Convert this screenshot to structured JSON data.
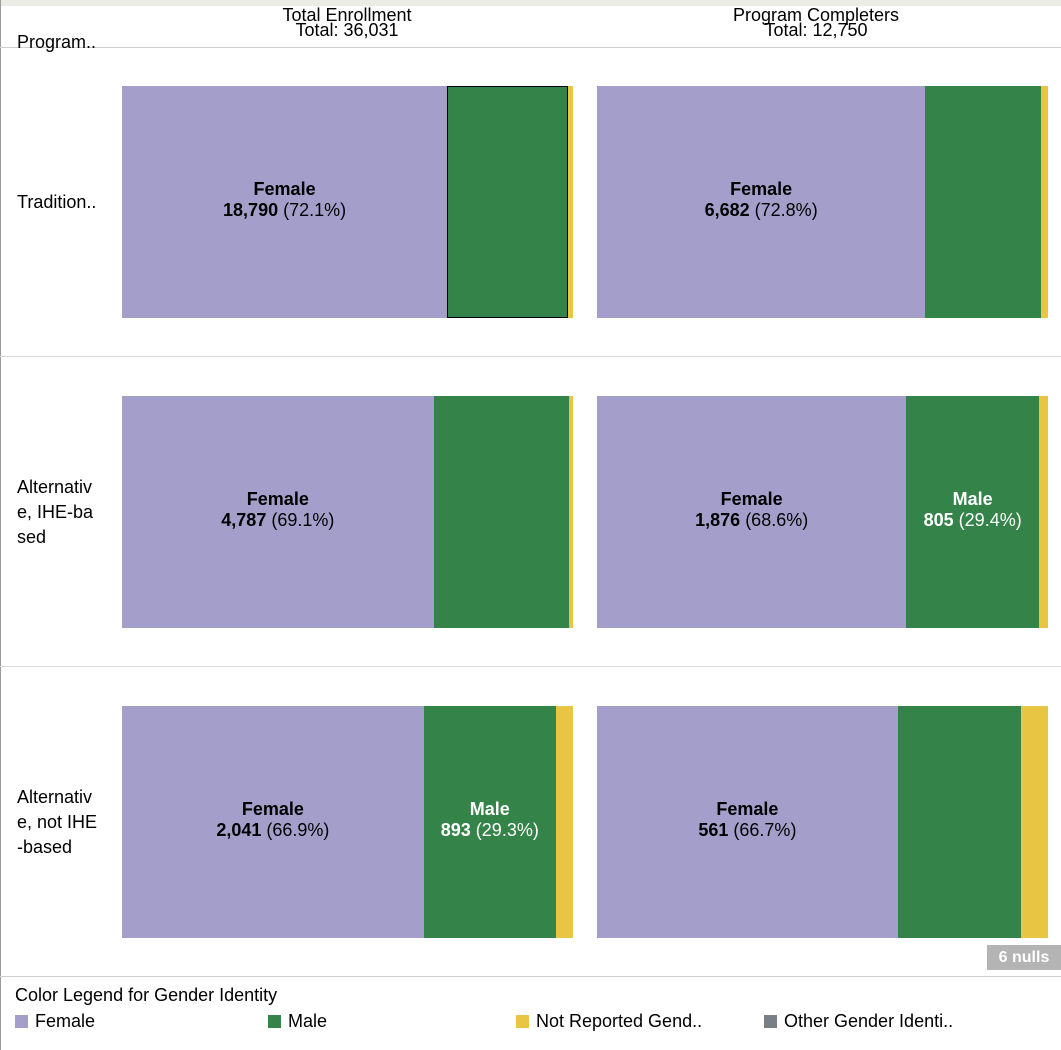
{
  "header": {
    "row_field_label": "Program..",
    "columns": [
      {
        "title": "Total Enrollment",
        "total": "Total: 36,031"
      },
      {
        "title": "Program Completers",
        "total": "Total: 12,750"
      }
    ]
  },
  "rows": [
    {
      "label_lines": [
        "Tradition.."
      ],
      "cells": [
        {
          "female_label": {
            "name": "Female",
            "count": "18,790",
            "pct": "(72.1%)"
          },
          "male_label": null
        },
        {
          "female_label": {
            "name": "Female",
            "count": "6,682",
            "pct": "(72.8%)"
          },
          "male_label": null
        }
      ]
    },
    {
      "label_lines": [
        "Alternativ",
        "e, IHE-ba",
        "sed"
      ],
      "cells": [
        {
          "female_label": {
            "name": "Female",
            "count": "4,787",
            "pct": "(69.1%)"
          },
          "male_label": null
        },
        {
          "female_label": {
            "name": "Female",
            "count": "1,876",
            "pct": "(68.6%)"
          },
          "male_label": {
            "name": "Male",
            "count": "805",
            "pct": "(29.4%)"
          }
        }
      ]
    },
    {
      "label_lines": [
        "Alternativ",
        "e, not IHE",
        "-based"
      ],
      "cells": [
        {
          "female_label": {
            "name": "Female",
            "count": "2,041",
            "pct": "(66.9%)"
          },
          "male_label": {
            "name": "Male",
            "count": "893",
            "pct": "(29.3%)"
          }
        },
        {
          "female_label": {
            "name": "Female",
            "count": "561",
            "pct": "(66.7%)"
          },
          "male_label": null
        }
      ]
    }
  ],
  "nulls_badge": "6 nulls",
  "legend": {
    "title": "Color Legend for Gender Identity",
    "items": [
      {
        "label": "Female",
        "color": "#a49fca"
      },
      {
        "label": "Male",
        "color": "#34844a"
      },
      {
        "label": "Not Reported Gend..",
        "color": "#e8c542"
      },
      {
        "label": "Other Gender Identi..",
        "color": "#7a7f87"
      }
    ]
  },
  "chart_data": {
    "type": "bar",
    "orientation": "horizontal",
    "stacked": "100%",
    "categories": [
      "Tradition..",
      "Alternative, IHE-based",
      "Alternative, not IHE-based"
    ],
    "panels": [
      {
        "title": "Total Enrollment",
        "total": 36031,
        "series": [
          {
            "name": "Female",
            "values": [
              18790,
              4787,
              2041
            ],
            "percents": [
              72.1,
              69.1,
              66.9
            ]
          },
          {
            "name": "Male",
            "values": [
              null,
              null,
              893
            ],
            "percents": [
              26.9,
              30.0,
              29.3
            ]
          },
          {
            "name": "Not Reported Gend..",
            "values": [
              null,
              null,
              null
            ],
            "percents": [
              1.0,
              0.9,
              3.8
            ]
          },
          {
            "name": "Other Gender Identi..",
            "values": [
              null,
              null,
              null
            ],
            "percents": [
              0,
              0,
              0
            ]
          }
        ]
      },
      {
        "title": "Program Completers",
        "total": 12750,
        "series": [
          {
            "name": "Female",
            "values": [
              6682,
              1876,
              561
            ],
            "percents": [
              72.8,
              68.6,
              66.7
            ]
          },
          {
            "name": "Male",
            "values": [
              null,
              805,
              null
            ],
            "percents": [
              25.7,
              29.4,
              27.3
            ]
          },
          {
            "name": "Not Reported Gend..",
            "values": [
              null,
              null,
              null
            ],
            "percents": [
              1.5,
              2.0,
              6.0
            ]
          },
          {
            "name": "Other Gender Identi..",
            "values": [
              null,
              null,
              null
            ],
            "percents": [
              0,
              0,
              0
            ]
          }
        ]
      }
    ],
    "xlim": [
      0,
      100
    ],
    "grid": false,
    "legend_position": "bottom"
  }
}
